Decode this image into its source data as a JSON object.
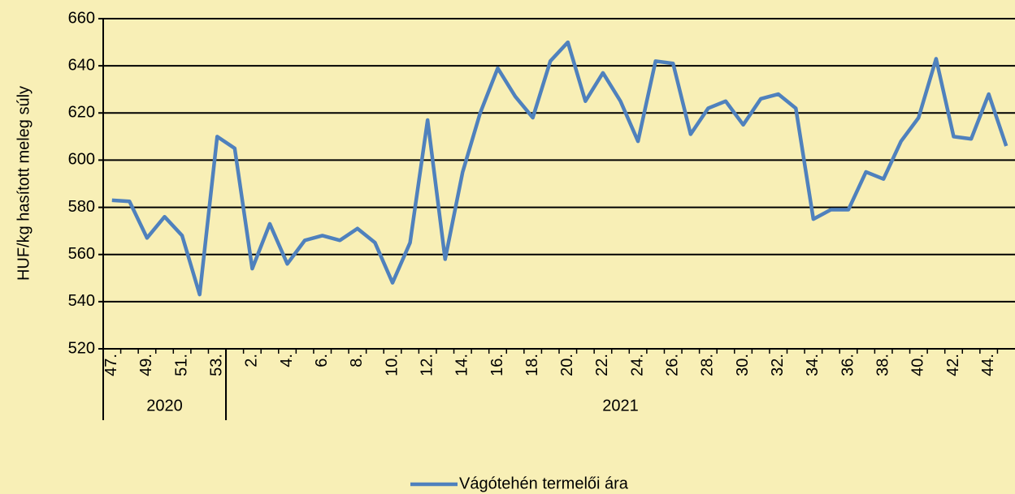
{
  "chart_data": {
    "type": "line",
    "y_label": "HUF/kg hasított meleg súly",
    "categories": [
      "47.",
      null,
      "49.",
      null,
      "51.",
      null,
      "53.",
      null,
      "2.",
      null,
      "4.",
      null,
      "6.",
      null,
      "8.",
      null,
      "10.",
      null,
      "12.",
      null,
      "14.",
      null,
      "16.",
      null,
      "18.",
      null,
      "20.",
      null,
      "22.",
      null,
      "24.",
      null,
      "26.",
      null,
      "28.",
      null,
      "30.",
      null,
      "32.",
      null,
      "34.",
      null,
      "36.",
      null,
      "38.",
      null,
      "40.",
      null,
      "42.",
      null,
      "44.",
      null
    ],
    "groups": [
      {
        "label": "2020",
        "start": 0,
        "end": 6
      },
      {
        "label": "2021",
        "start": 7,
        "end": 51
      }
    ],
    "series": [
      {
        "name": "Vágótehén termelői ára",
        "color": "#4f81bd",
        "values": [
          583,
          582.5,
          567,
          576,
          568,
          543,
          610,
          605,
          554,
          573,
          556,
          566,
          568,
          566,
          571,
          565,
          548,
          565,
          617,
          558,
          595,
          620,
          639,
          627,
          618,
          642,
          650,
          625,
          637,
          625,
          608,
          642,
          641,
          611,
          622,
          625,
          615,
          626,
          628,
          622,
          575,
          579,
          579,
          595,
          592,
          608,
          618,
          643,
          610,
          609,
          628,
          606
        ]
      }
    ],
    "ylim": [
      520,
      660
    ],
    "yticks": [
      520,
      540,
      560,
      580,
      600,
      620,
      640,
      660
    ],
    "grid": true,
    "legend": "bottom"
  }
}
